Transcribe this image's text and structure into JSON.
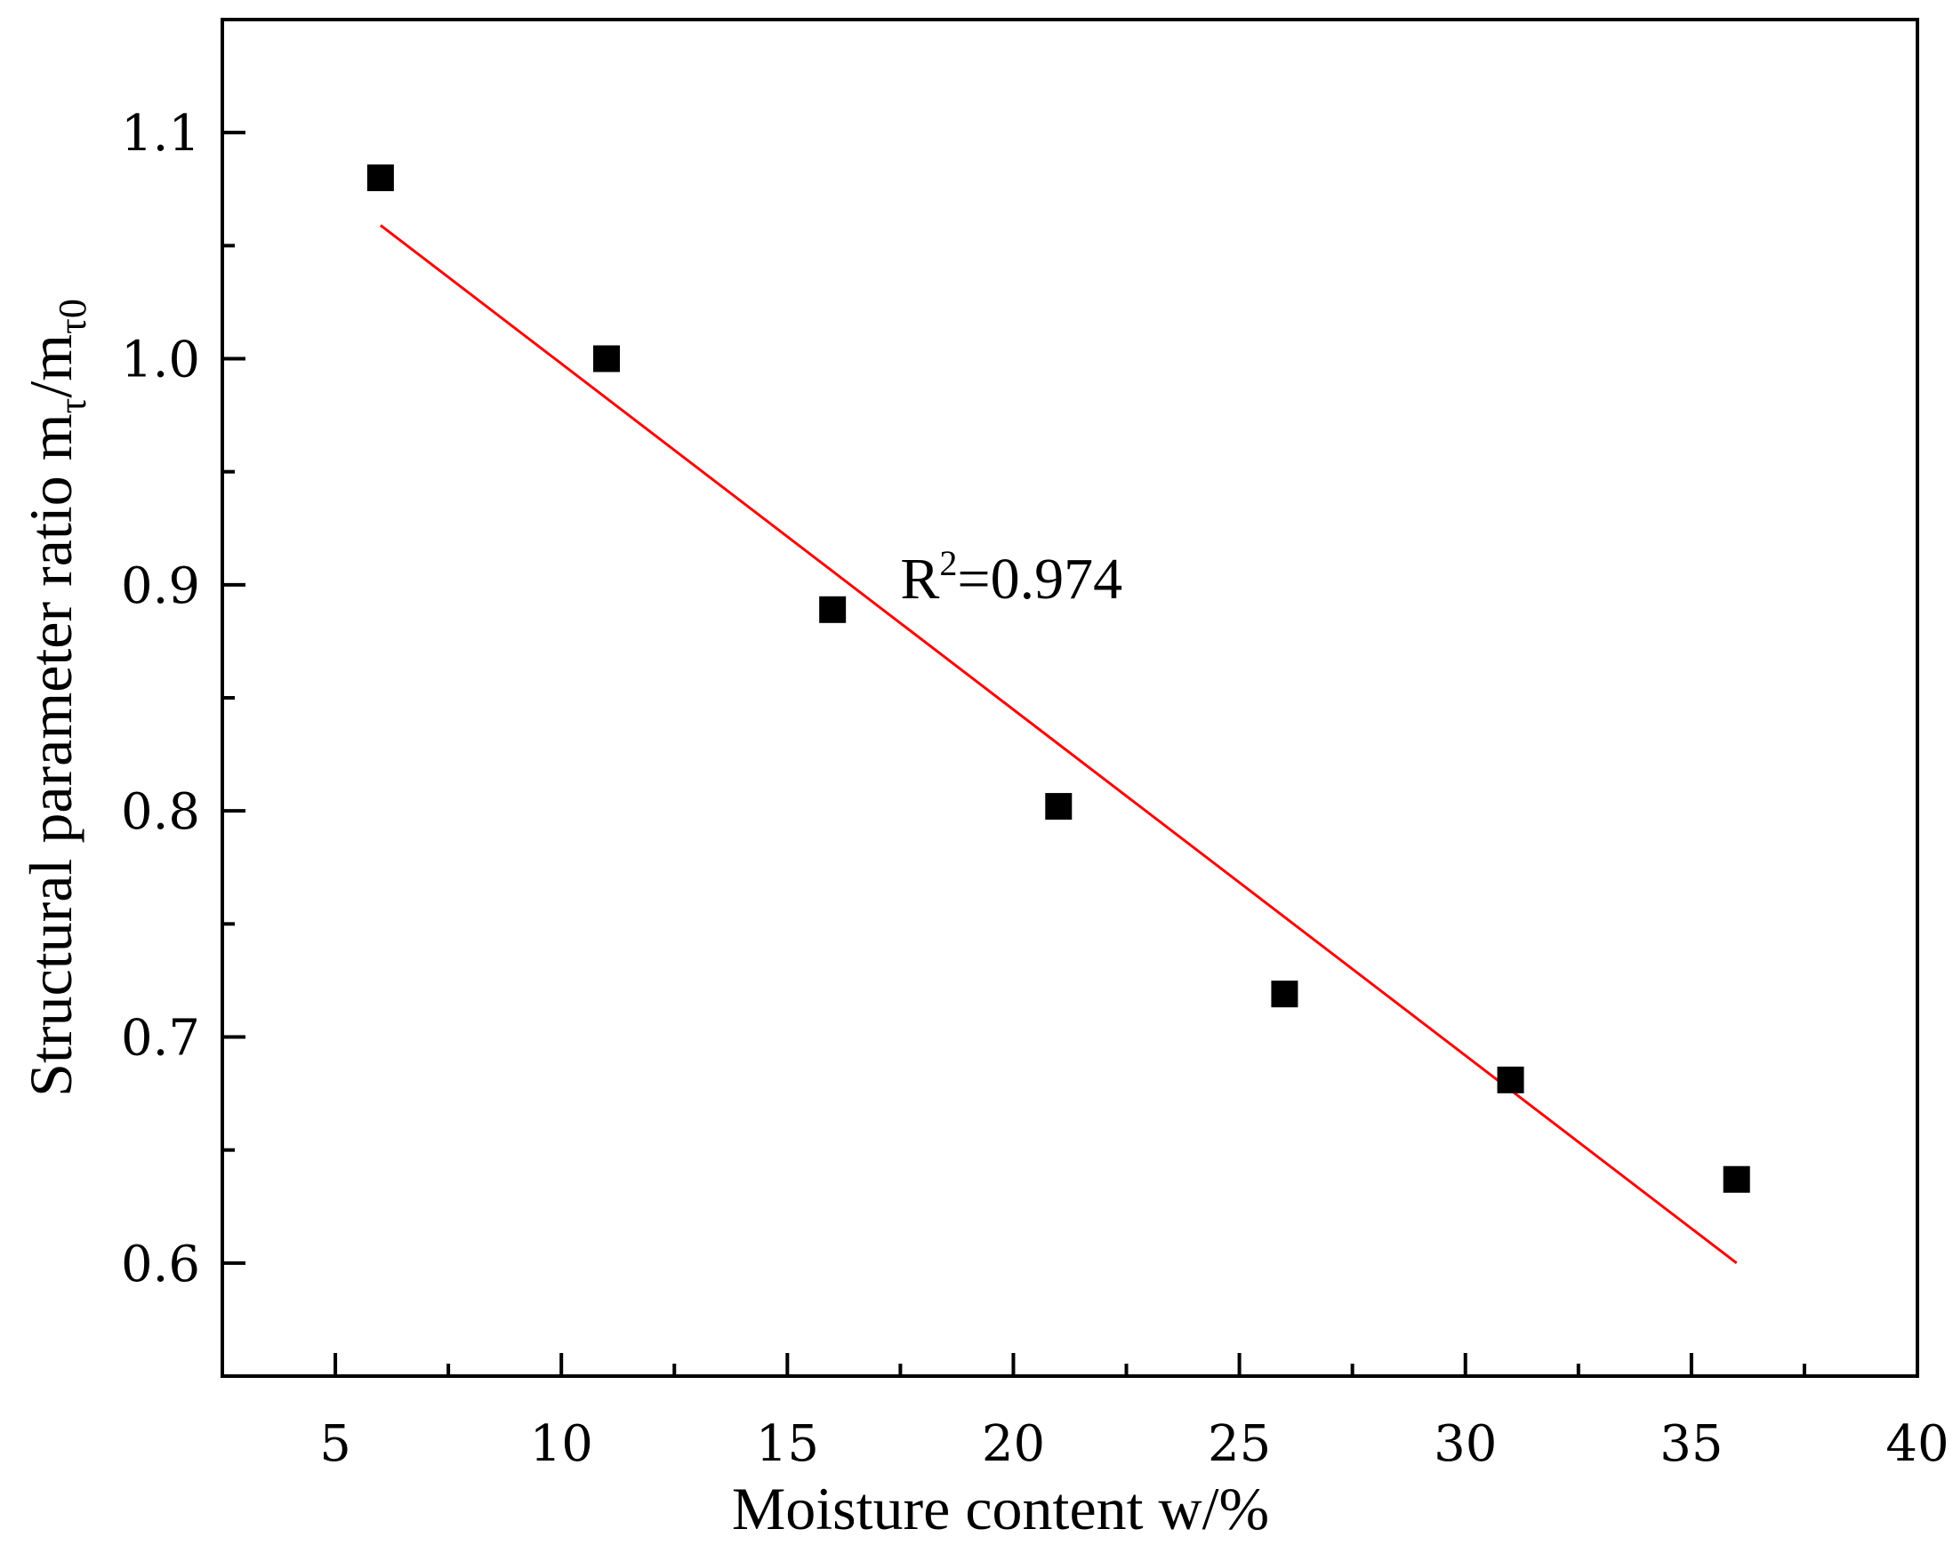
{
  "chart_data": {
    "type": "scatter",
    "xlabel": "Moisture content w/%",
    "ylabel": {
      "main": "Structural parameter ratio",
      "m1": "m",
      "sub1": "τ",
      "slash": "/",
      "m2": "m",
      "sub2": "τ0"
    },
    "xlim": [
      2.5,
      40
    ],
    "ylim": [
      0.55,
      1.15
    ],
    "x_ticks_major": [
      5,
      10,
      15,
      20,
      25,
      30,
      35,
      40
    ],
    "x_tick_labels": [
      "5",
      "10",
      "15",
      "20",
      "25",
      "30",
      "35",
      "40"
    ],
    "x_ticks_minor": [
      7.5,
      12.5,
      17.5,
      22.5,
      27.5,
      32.5,
      37.5
    ],
    "y_ticks_major": [
      0.6,
      0.7,
      0.8,
      0.9,
      1.0,
      1.1
    ],
    "y_tick_labels": [
      "0.6",
      "0.7",
      "0.8",
      "0.9",
      "1.0",
      "1.1"
    ],
    "y_ticks_minor": [
      0.65,
      0.75,
      0.85,
      0.95,
      1.05
    ],
    "grid": false,
    "series": [
      {
        "type": "scatter",
        "marker": "square",
        "color": "#000000",
        "x": [
          6,
          11,
          16,
          21,
          26,
          31,
          36
        ],
        "y": [
          1.08,
          1.0,
          0.889,
          0.802,
          0.719,
          0.681,
          0.637
        ]
      },
      {
        "type": "line",
        "color": "#ff0000",
        "x": [
          6,
          36
        ],
        "y": [
          1.059,
          0.6
        ]
      }
    ],
    "annotation": {
      "base": "R",
      "sup": "2",
      "rest": "=0.974",
      "x": 17.5,
      "y": 0.9
    }
  }
}
